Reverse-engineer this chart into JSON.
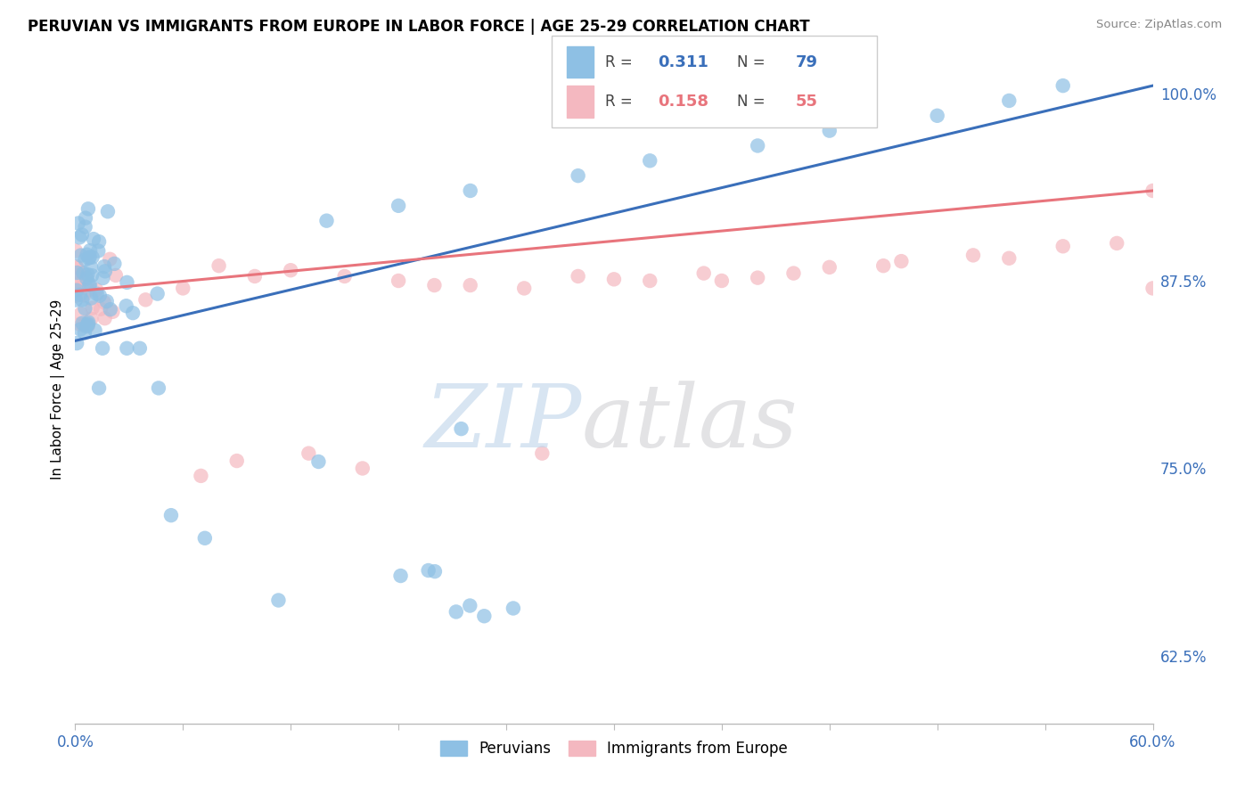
{
  "title": "PERUVIAN VS IMMIGRANTS FROM EUROPE IN LABOR FORCE | AGE 25-29 CORRELATION CHART",
  "source": "Source: ZipAtlas.com",
  "ylabel": "In Labor Force | Age 25-29",
  "xlim": [
    0.0,
    0.6
  ],
  "ylim": [
    0.58,
    1.025
  ],
  "xticks": [
    0.0,
    0.06,
    0.12,
    0.18,
    0.24,
    0.3,
    0.36,
    0.42,
    0.48,
    0.54,
    0.6
  ],
  "ytick_labels": [
    "62.5%",
    "75.0%",
    "87.5%",
    "100.0%"
  ],
  "ytick_positions": [
    0.625,
    0.75,
    0.875,
    1.0
  ],
  "blue_R": 0.311,
  "blue_N": 79,
  "pink_R": 0.158,
  "pink_N": 55,
  "blue_color": "#8ec0e4",
  "pink_color": "#f4b8c0",
  "blue_line_color": "#3a6fba",
  "pink_line_color": "#e8747c",
  "blue_trend_x0": 0.0,
  "blue_trend_y0": 0.835,
  "blue_trend_x1": 0.6,
  "blue_trend_y1": 1.005,
  "pink_trend_x0": 0.0,
  "pink_trend_y0": 0.868,
  "pink_trend_x1": 0.6,
  "pink_trend_y1": 0.935,
  "legend_blue_R": "0.311",
  "legend_blue_N": "79",
  "legend_pink_R": "0.158",
  "legend_pink_N": "55"
}
